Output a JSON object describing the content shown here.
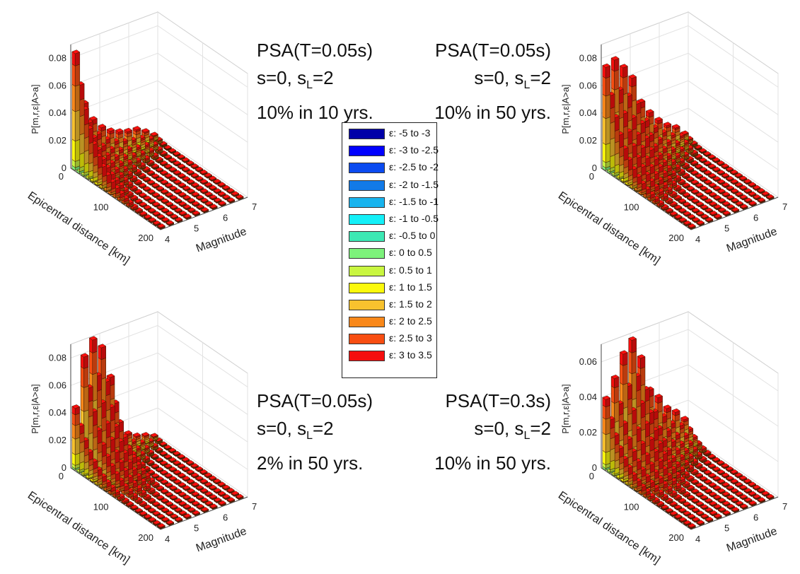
{
  "panels": [
    {
      "title_lines": [
        "PSA(T=0.05s)",
        "s=0, s_L=2",
        "10% in 10 yrs."
      ],
      "chart_data": {
        "type": "bar",
        "title": "PSA(T=0.05s) s=0, s_L=2 10% in 10 yrs.",
        "xlabel": "Epicentral distance [km]",
        "ylabel": "Magnitude",
        "zlabel": "P[m,r,ε|A>a]",
        "x_ticks": [
          0,
          100,
          200
        ],
        "y_ticks": [
          4,
          5,
          6,
          7
        ],
        "z_ticks": [
          "0",
          "0.02",
          "0.04",
          "0.06",
          "0.08"
        ],
        "zlim": [
          0,
          0.09
        ],
        "grid": true,
        "magnitudes": [
          4.1,
          4.4,
          4.7,
          5.0,
          5.3,
          5.6,
          5.9,
          6.2,
          6.5,
          6.8
        ],
        "distances": [
          5,
          15,
          25,
          35,
          45,
          55,
          65,
          75,
          85,
          95,
          105,
          115,
          125,
          135,
          145,
          155,
          165,
          175,
          185,
          195
        ],
        "totals_by_magnitude": [
          0.085,
          0.046,
          0.032,
          0.024,
          0.019,
          0.016,
          0.014,
          0.013,
          0.009,
          0.004
        ]
      }
    },
    {
      "title_lines": [
        "PSA(T=0.05s)",
        "s=0, s_L=2",
        "10% in 50 yrs."
      ],
      "chart_data": {
        "type": "bar",
        "title": "PSA(T=0.05s) s=0, s_L=2 10% in 50 yrs.",
        "xlabel": "Epicentral distance [km]",
        "ylabel": "Magnitude",
        "zlabel": "P[m,r,ε|A>a]",
        "x_ticks": [
          0,
          100,
          200
        ],
        "y_ticks": [
          4,
          5,
          6,
          7
        ],
        "z_ticks": [
          "0",
          "0.02",
          "0.04",
          "0.06",
          "0.08"
        ],
        "zlim": [
          0,
          0.09
        ],
        "grid": true,
        "magnitudes": [
          4.1,
          4.4,
          4.7,
          5.0,
          5.3,
          5.6,
          5.9,
          6.2,
          6.5,
          6.8
        ],
        "distances": [
          5,
          15,
          25,
          35,
          45,
          55,
          65,
          75,
          85,
          95,
          105,
          115,
          125,
          135,
          145,
          155,
          165,
          175,
          185,
          195
        ],
        "totals_by_magnitude": [
          0.075,
          0.078,
          0.07,
          0.06,
          0.04,
          0.03,
          0.022,
          0.016,
          0.012,
          0.005
        ]
      }
    },
    {
      "title_lines": [
        "PSA(T=0.05s)",
        "s=0, s_L=2",
        "2% in 50 yrs."
      ],
      "chart_data": {
        "type": "bar",
        "title": "PSA(T=0.05s) s=0, s_L=2 2% in 50 yrs.",
        "xlabel": "Epicentral distance [km]",
        "ylabel": "Magnitude",
        "zlabel": "P[m,r,ε|A>a]",
        "x_ticks": [
          0,
          100,
          200
        ],
        "y_ticks": [
          4,
          5,
          6,
          7
        ],
        "z_ticks": [
          "0",
          "0.02",
          "0.04",
          "0.06",
          "0.08"
        ],
        "zlim": [
          0,
          0.09
        ],
        "grid": true,
        "magnitudes": [
          4.1,
          4.4,
          4.7,
          5.0,
          5.3,
          5.6,
          5.9,
          6.2,
          6.5,
          6.8
        ],
        "distances": [
          5,
          15,
          25,
          35,
          45,
          55,
          65,
          75,
          85,
          95,
          105,
          115,
          125,
          135,
          145,
          155,
          165,
          175,
          185,
          195
        ],
        "totals_by_magnitude": [
          0.045,
          0.08,
          0.09,
          0.082,
          0.058,
          0.018,
          0.012,
          0.008,
          0.006,
          0.003
        ]
      }
    },
    {
      "title_lines": [
        "PSA(T=0.3s)",
        "s=0, s_L=2",
        "10% in 50 yrs."
      ],
      "chart_data": {
        "type": "bar",
        "title": "PSA(T=0.3s) s=0, s_L=2 10% in 50 yrs.",
        "xlabel": "Epicentral distance [km]",
        "ylabel": "Magnitude",
        "zlabel": "P[m,r,ε|A>a]",
        "x_ticks": [
          0,
          100,
          200
        ],
        "y_ticks": [
          4,
          5,
          6,
          7
        ],
        "z_ticks": [
          "0",
          "0.02",
          "0.04",
          "0.06"
        ],
        "zlim": [
          0,
          0.07
        ],
        "grid": true,
        "magnitudes": [
          4.1,
          4.4,
          4.7,
          5.0,
          5.3,
          5.6,
          5.9,
          6.2,
          6.5,
          6.8
        ],
        "distances": [
          5,
          15,
          25,
          35,
          45,
          55,
          65,
          75,
          85,
          95,
          105,
          115,
          125,
          135,
          145,
          155,
          165,
          175,
          185,
          195
        ],
        "totals_by_magnitude": [
          0.04,
          0.05,
          0.062,
          0.068,
          0.056,
          0.036,
          0.03,
          0.022,
          0.018,
          0.012
        ]
      }
    }
  ],
  "legend": {
    "entries": [
      {
        "label": "ε: -5 to -3",
        "color": "#0000a8"
      },
      {
        "label": "ε: -3 to -2.5",
        "color": "#0000ff"
      },
      {
        "label": "ε: -2.5 to -2",
        "color": "#0b4bf0"
      },
      {
        "label": "ε: -2 to -1.5",
        "color": "#127ae8"
      },
      {
        "label": "ε: -1.5 to -1",
        "color": "#18b4ee"
      },
      {
        "label": "ε: -1 to -0.5",
        "color": "#14f0f8"
      },
      {
        "label": "ε: -0.5 to 0",
        "color": "#3ce9b4"
      },
      {
        "label": "ε: 0 to 0.5",
        "color": "#7df27b"
      },
      {
        "label": "ε: 0.5 to 1",
        "color": "#c9f640"
      },
      {
        "label": "ε: 1 to 1.5",
        "color": "#fbf90c"
      },
      {
        "label": "ε: 1.5 to 2",
        "color": "#f8c22e"
      },
      {
        "label": "ε: 2 to 2.5",
        "color": "#f9881a"
      },
      {
        "label": "ε: 2.5 to 3",
        "color": "#f84e12"
      },
      {
        "label": "ε: 3 to 3.5",
        "color": "#f50e0e"
      }
    ]
  }
}
